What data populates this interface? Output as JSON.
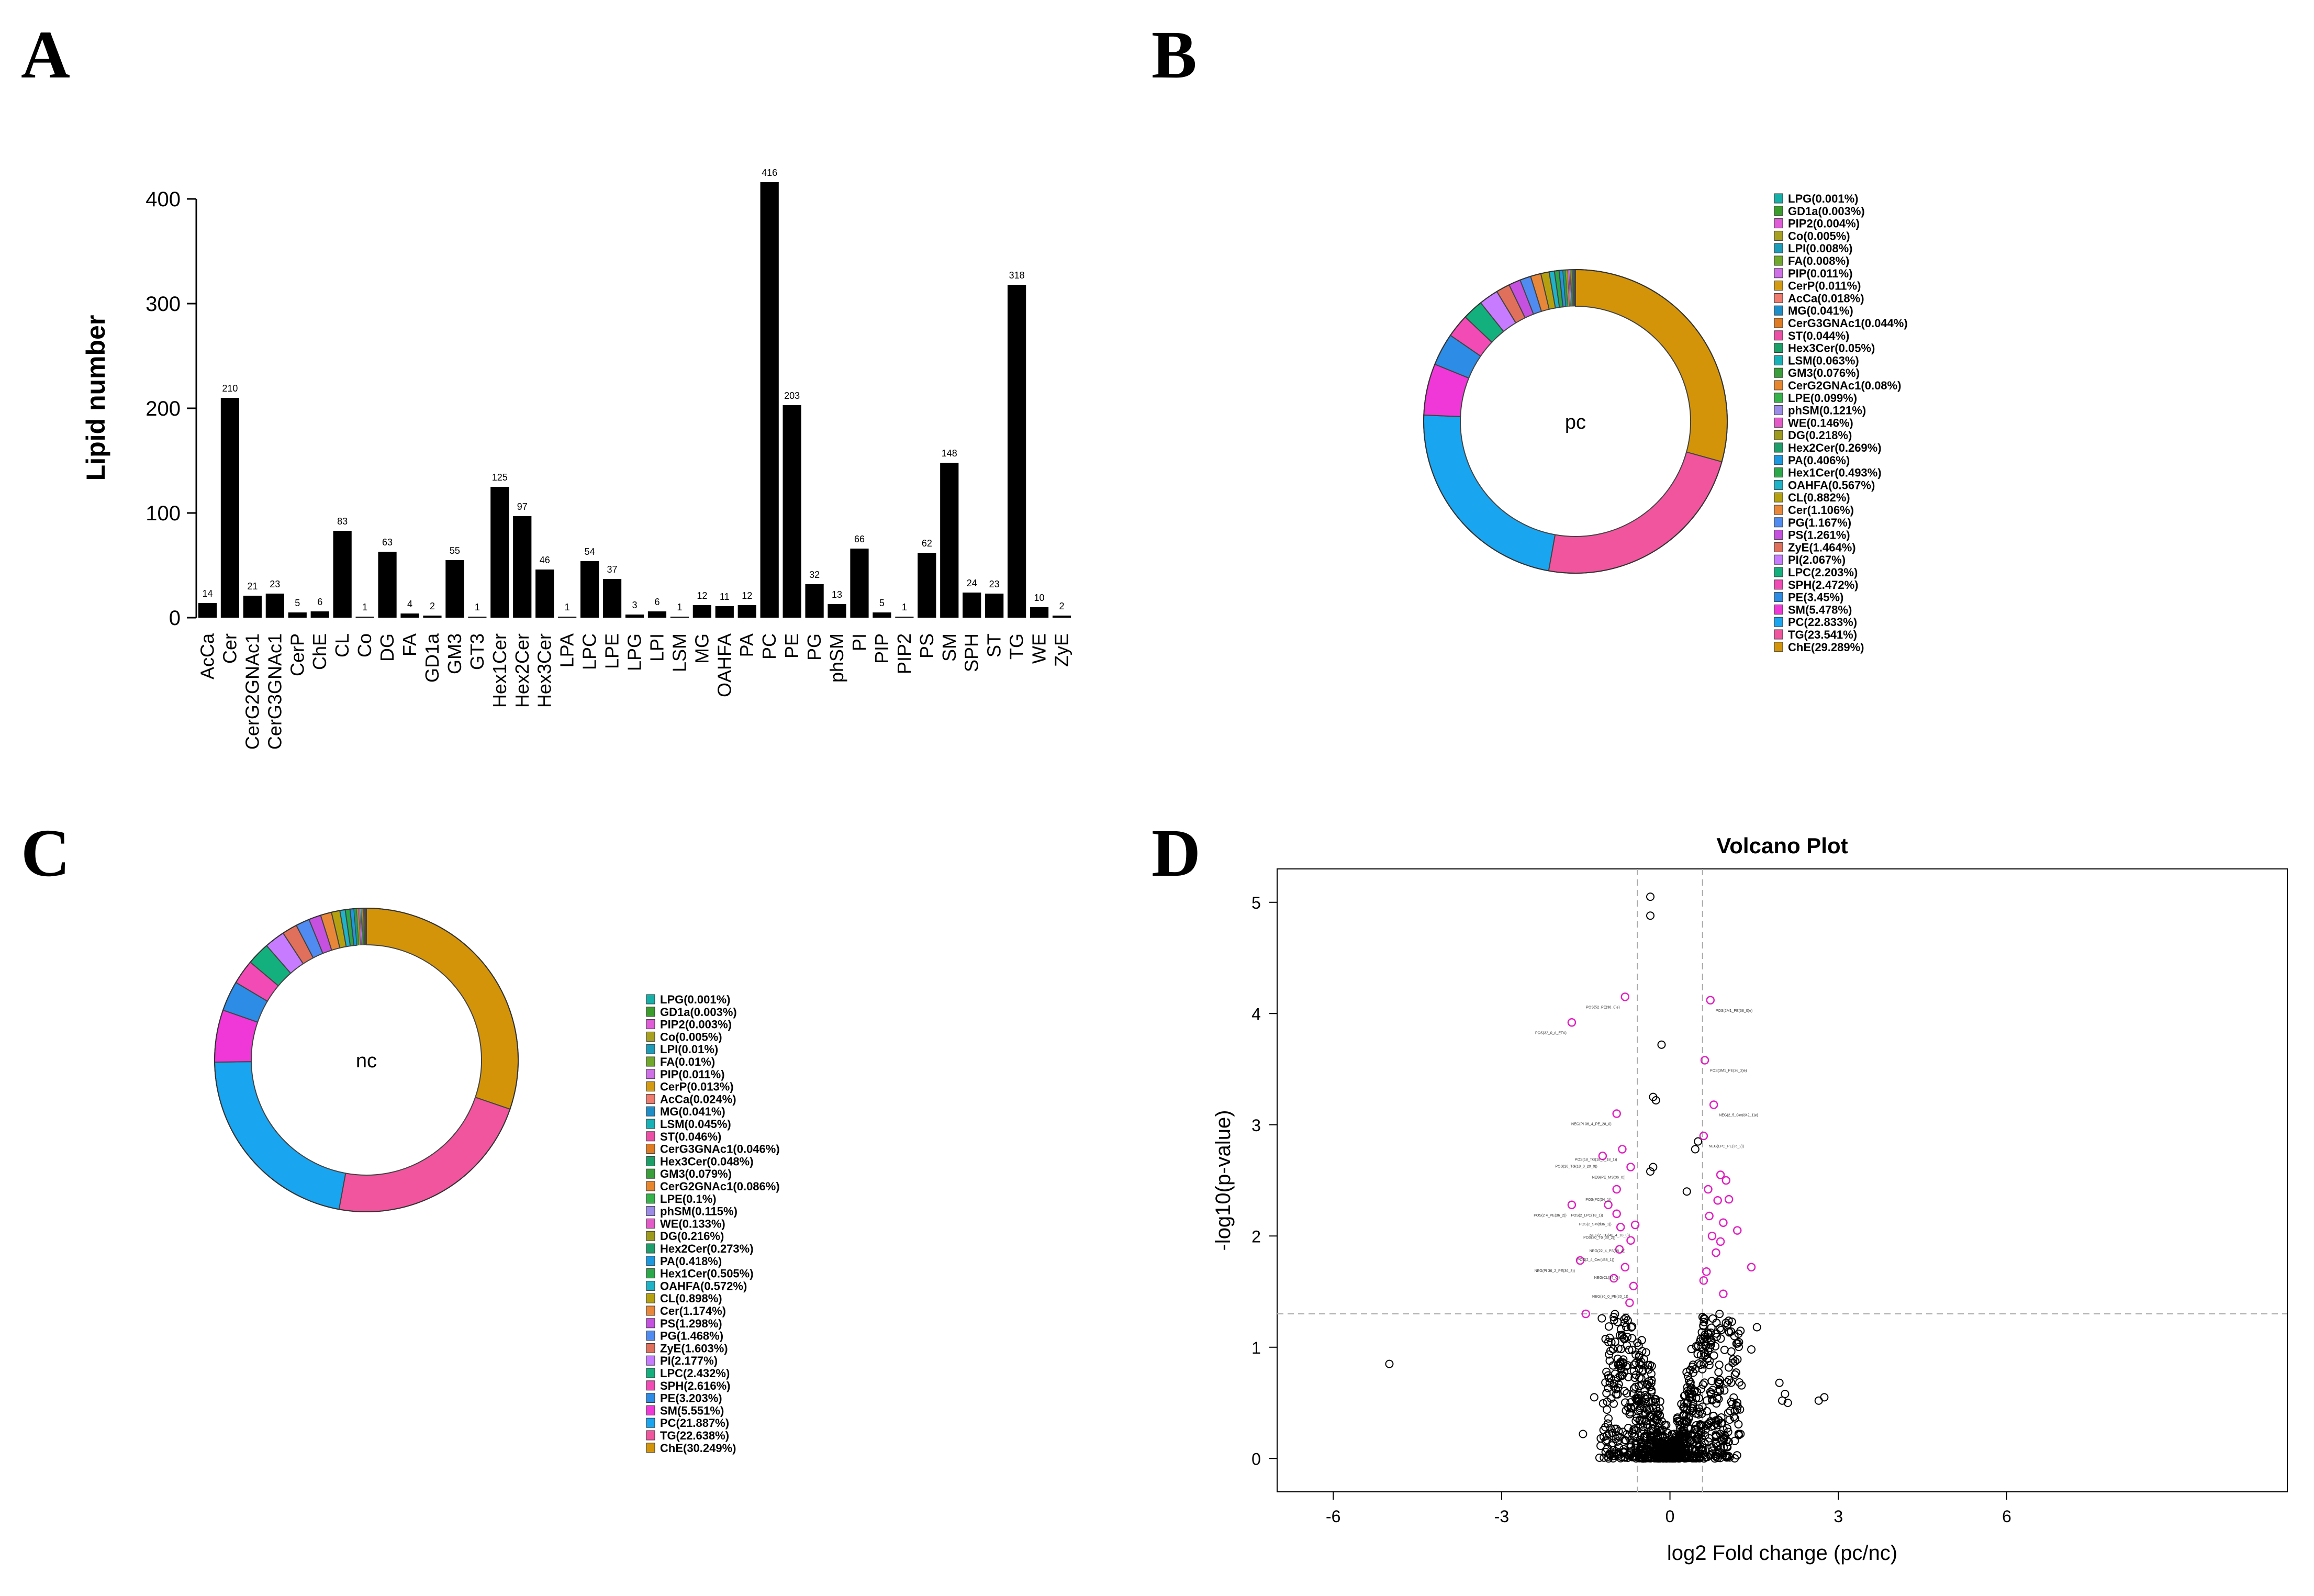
{
  "panels": {
    "a": {
      "letter": "A"
    },
    "b": {
      "letter": "B"
    },
    "c": {
      "letter": "C"
    },
    "d": {
      "letter": "D"
    }
  },
  "chart_data": [
    {
      "type": "bar",
      "title": "",
      "ylabel": "Lipid number",
      "xlabel": "",
      "ylim": [
        0,
        420
      ],
      "yticks": [
        0,
        100,
        200,
        300,
        400
      ],
      "bar_color": "#000000",
      "categories": [
        "AcCa",
        "Cer",
        "CerG2GNAc1",
        "CerG3GNAc1",
        "CerP",
        "ChE",
        "CL",
        "Co",
        "DG",
        "FA",
        "GD1a",
        "GM3",
        "GT3",
        "Hex1Cer",
        "Hex2Cer",
        "Hex3Cer",
        "LPA",
        "LPC",
        "LPE",
        "LPG",
        "LPI",
        "LSM",
        "MG",
        "OAHFA",
        "PA",
        "PC",
        "PE",
        "PG",
        "phSM",
        "PI",
        "PIP",
        "PIP2",
        "PS",
        "SM",
        "SPH",
        "ST",
        "TG",
        "WE",
        "ZyE"
      ],
      "values": [
        14,
        210,
        21,
        23,
        5,
        6,
        83,
        1,
        63,
        4,
        2,
        55,
        1,
        125,
        97,
        46,
        1,
        54,
        37,
        3,
        6,
        1,
        12,
        11,
        12,
        416,
        203,
        32,
        13,
        66,
        5,
        1,
        62,
        148,
        24,
        23,
        318,
        10,
        2
      ]
    },
    {
      "type": "pie",
      "donut": true,
      "center_label": "pc",
      "slices": [
        {
          "name": "ChE",
          "value": 29.289,
          "label": "ChE(29.289%)",
          "color": "#D4940A"
        },
        {
          "name": "TG",
          "value": 23.541,
          "label": "TG(23.541%)",
          "color": "#F1559E"
        },
        {
          "name": "PC",
          "value": 22.833,
          "label": "PC(22.833%)",
          "color": "#1AA5F0"
        },
        {
          "name": "SM",
          "value": 5.478,
          "label": "SM(5.478%)",
          "color": "#F037D8"
        },
        {
          "name": "PE",
          "value": 3.45,
          "label": "PE(3.45%)",
          "color": "#2C8CE6"
        },
        {
          "name": "SPH",
          "value": 2.472,
          "label": "SPH(2.472%)",
          "color": "#F24BB5"
        },
        {
          "name": "LPC",
          "value": 2.203,
          "label": "LPC(2.203%)",
          "color": "#13B07E"
        },
        {
          "name": "PI",
          "value": 2.067,
          "label": "PI(2.067%)",
          "color": "#C77CFF"
        },
        {
          "name": "ZyE",
          "value": 1.464,
          "label": "ZyE(1.464%)",
          "color": "#E0705C"
        },
        {
          "name": "PS",
          "value": 1.261,
          "label": "PS(1.261%)",
          "color": "#C651E0"
        },
        {
          "name": "PG",
          "value": 1.167,
          "label": "PG(1.167%)",
          "color": "#4F8BF0"
        },
        {
          "name": "Cer",
          "value": 1.106,
          "label": "Cer(1.106%)",
          "color": "#E8873A"
        },
        {
          "name": "CL",
          "value": 0.882,
          "label": "CL(0.882%)",
          "color": "#B5A10F"
        },
        {
          "name": "OAHFA",
          "value": 0.567,
          "label": "OAHFA(0.567%)",
          "color": "#1FB3C8"
        },
        {
          "name": "Hex1Cer",
          "value": 0.493,
          "label": "Hex1Cer(0.493%)",
          "color": "#2BA84A"
        },
        {
          "name": "PA",
          "value": 0.406,
          "label": "PA(0.406%)",
          "color": "#1B98E0"
        },
        {
          "name": "Hex2Cer",
          "value": 0.269,
          "label": "Hex2Cer(0.269%)",
          "color": "#1E9E6A"
        },
        {
          "name": "DG",
          "value": 0.218,
          "label": "DG(0.218%)",
          "color": "#9E9A1E"
        },
        {
          "name": "WE",
          "value": 0.146,
          "label": "WE(0.146%)",
          "color": "#E45AC8"
        },
        {
          "name": "phSM",
          "value": 0.121,
          "label": "phSM(0.121%)",
          "color": "#9C8CE8"
        },
        {
          "name": "LPE",
          "value": 0.099,
          "label": "LPE(0.099%)",
          "color": "#36B24A"
        },
        {
          "name": "CerG2GNAc1",
          "value": 0.08,
          "label": "CerG2GNAc1(0.08%)",
          "color": "#E8862E"
        },
        {
          "name": "GM3",
          "value": 0.076,
          "label": "GM3(0.076%)",
          "color": "#3A9E3A"
        },
        {
          "name": "LSM",
          "value": 0.063,
          "label": "LSM(0.063%)",
          "color": "#17B2B8"
        },
        {
          "name": "Hex3Cer",
          "value": 0.05,
          "label": "Hex3Cer(0.05%)",
          "color": "#1AA068"
        },
        {
          "name": "ST",
          "value": 0.044,
          "label": "ST(0.044%)",
          "color": "#EE4FA6"
        },
        {
          "name": "CerG3GNAc1",
          "value": 0.044,
          "label": "CerG3GNAc1(0.044%)",
          "color": "#E07B22"
        },
        {
          "name": "MG",
          "value": 0.041,
          "label": "MG(0.041%)",
          "color": "#1E8EC8"
        },
        {
          "name": "AcCa",
          "value": 0.018,
          "label": "AcCa(0.018%)",
          "color": "#F07C70"
        },
        {
          "name": "CerP",
          "value": 0.011,
          "label": "CerP(0.011%)",
          "color": "#D39A12"
        },
        {
          "name": "PIP",
          "value": 0.011,
          "label": "PIP(0.011%)",
          "color": "#D070E8"
        },
        {
          "name": "FA",
          "value": 0.008,
          "label": "FA(0.008%)",
          "color": "#6FA82A"
        },
        {
          "name": "LPI",
          "value": 0.008,
          "label": "LPI(0.008%)",
          "color": "#1C9CB8"
        },
        {
          "name": "Co",
          "value": 0.005,
          "label": "Co(0.005%)",
          "color": "#A8A020"
        },
        {
          "name": "PIP2",
          "value": 0.004,
          "label": "PIP2(0.004%)",
          "color": "#E05CD8"
        },
        {
          "name": "GD1a",
          "value": 0.003,
          "label": "GD1a(0.003%)",
          "color": "#3A9C2A"
        },
        {
          "name": "LPG",
          "value": 0.001,
          "label": "LPG(0.001%)",
          "color": "#16B0A8"
        }
      ]
    },
    {
      "type": "pie",
      "donut": true,
      "center_label": "nc",
      "slices": [
        {
          "name": "ChE",
          "value": 30.249,
          "label": "ChE(30.249%)",
          "color": "#D4940A"
        },
        {
          "name": "TG",
          "value": 22.638,
          "label": "TG(22.638%)",
          "color": "#F1559E"
        },
        {
          "name": "PC",
          "value": 21.887,
          "label": "PC(21.887%)",
          "color": "#1AA5F0"
        },
        {
          "name": "SM",
          "value": 5.551,
          "label": "SM(5.551%)",
          "color": "#F037D8"
        },
        {
          "name": "PE",
          "value": 3.203,
          "label": "PE(3.203%)",
          "color": "#2C8CE6"
        },
        {
          "name": "SPH",
          "value": 2.616,
          "label": "SPH(2.616%)",
          "color": "#F24BB5"
        },
        {
          "name": "LPC",
          "value": 2.432,
          "label": "LPC(2.432%)",
          "color": "#13B07E"
        },
        {
          "name": "PI",
          "value": 2.177,
          "label": "PI(2.177%)",
          "color": "#C77CFF"
        },
        {
          "name": "ZyE",
          "value": 1.603,
          "label": "ZyE(1.603%)",
          "color": "#E0705C"
        },
        {
          "name": "PG",
          "value": 1.468,
          "label": "PG(1.468%)",
          "color": "#4F8BF0"
        },
        {
          "name": "PS",
          "value": 1.298,
          "label": "PS(1.298%)",
          "color": "#C651E0"
        },
        {
          "name": "Cer",
          "value": 1.174,
          "label": "Cer(1.174%)",
          "color": "#E8873A"
        },
        {
          "name": "CL",
          "value": 0.898,
          "label": "CL(0.898%)",
          "color": "#B5A10F"
        },
        {
          "name": "OAHFA",
          "value": 0.572,
          "label": "OAHFA(0.572%)",
          "color": "#1FB3C8"
        },
        {
          "name": "Hex1Cer",
          "value": 0.505,
          "label": "Hex1Cer(0.505%)",
          "color": "#2BA84A"
        },
        {
          "name": "PA",
          "value": 0.418,
          "label": "PA(0.418%)",
          "color": "#1B98E0"
        },
        {
          "name": "Hex2Cer",
          "value": 0.273,
          "label": "Hex2Cer(0.273%)",
          "color": "#1E9E6A"
        },
        {
          "name": "DG",
          "value": 0.216,
          "label": "DG(0.216%)",
          "color": "#9E9A1E"
        },
        {
          "name": "WE",
          "value": 0.133,
          "label": "WE(0.133%)",
          "color": "#E45AC8"
        },
        {
          "name": "phSM",
          "value": 0.115,
          "label": "phSM(0.115%)",
          "color": "#9C8CE8"
        },
        {
          "name": "LPE",
          "value": 0.1,
          "label": "LPE(0.1%)",
          "color": "#36B24A"
        },
        {
          "name": "CerG2GNAc1",
          "value": 0.086,
          "label": "CerG2GNAc1(0.086%)",
          "color": "#E8862E"
        },
        {
          "name": "GM3",
          "value": 0.079,
          "label": "GM3(0.079%)",
          "color": "#3A9E3A"
        },
        {
          "name": "Hex3Cer",
          "value": 0.048,
          "label": "Hex3Cer(0.048%)",
          "color": "#1AA068"
        },
        {
          "name": "CerG3GNAc1",
          "value": 0.046,
          "label": "CerG3GNAc1(0.046%)",
          "color": "#E07B22"
        },
        {
          "name": "ST",
          "value": 0.046,
          "label": "ST(0.046%)",
          "color": "#EE4FA6"
        },
        {
          "name": "LSM",
          "value": 0.045,
          "label": "LSM(0.045%)",
          "color": "#17B2B8"
        },
        {
          "name": "MG",
          "value": 0.041,
          "label": "MG(0.041%)",
          "color": "#1E8EC8"
        },
        {
          "name": "AcCa",
          "value": 0.024,
          "label": "AcCa(0.024%)",
          "color": "#F07C70"
        },
        {
          "name": "CerP",
          "value": 0.013,
          "label": "CerP(0.013%)",
          "color": "#D39A12"
        },
        {
          "name": "PIP",
          "value": 0.011,
          "label": "PIP(0.011%)",
          "color": "#D070E8"
        },
        {
          "name": "FA",
          "value": 0.01,
          "label": "FA(0.01%)",
          "color": "#6FA82A"
        },
        {
          "name": "LPI",
          "value": 0.01,
          "label": "LPI(0.01%)",
          "color": "#1C9CB8"
        },
        {
          "name": "Co",
          "value": 0.005,
          "label": "Co(0.005%)",
          "color": "#A8A020"
        },
        {
          "name": "PIP2",
          "value": 0.003,
          "label": "PIP2(0.003%)",
          "color": "#E05CD8"
        },
        {
          "name": "GD1a",
          "value": 0.003,
          "label": "GD1a(0.003%)",
          "color": "#3A9C2A"
        },
        {
          "name": "LPG",
          "value": 0.001,
          "label": "LPG(0.001%)",
          "color": "#16B0A8"
        }
      ]
    },
    {
      "type": "scatter",
      "title": "Volcano Plot",
      "xlabel": "log2 Fold change (pc/nc)",
      "ylabel": "-log10(p-value)",
      "xlim": [
        -7,
        11
      ],
      "ylim": [
        -0.3,
        5.3
      ],
      "xticks": [
        -6,
        -3,
        0,
        3,
        6
      ],
      "yticks": [
        0,
        1,
        2,
        3,
        4,
        5
      ],
      "thresholds": {
        "x": [
          -0.58,
          0.58
        ],
        "y": 1.3
      },
      "grid": false,
      "colors": {
        "significant": "#E020C0",
        "nonsignificant": "#000000",
        "threshold_line": "#AAAAAA"
      },
      "significant_points": [
        {
          "x": -1.75,
          "y": 3.92
        },
        {
          "x": -0.95,
          "y": 3.1
        },
        {
          "x": -0.8,
          "y": 4.15
        },
        {
          "x": 0.72,
          "y": 4.12
        },
        {
          "x": 0.62,
          "y": 3.58
        },
        {
          "x": 0.78,
          "y": 3.18
        },
        {
          "x": 0.6,
          "y": 2.9
        },
        {
          "x": -1.2,
          "y": 2.72
        },
        {
          "x": -0.85,
          "y": 2.78
        },
        {
          "x": -0.7,
          "y": 2.62
        },
        {
          "x": -0.95,
          "y": 2.42
        },
        {
          "x": -1.75,
          "y": 2.28
        },
        {
          "x": -0.88,
          "y": 2.08
        },
        {
          "x": -0.62,
          "y": 2.1
        },
        {
          "x": -0.95,
          "y": 2.2
        },
        {
          "x": -1.1,
          "y": 2.28
        },
        {
          "x": -0.7,
          "y": 1.96
        },
        {
          "x": -0.9,
          "y": 1.88
        },
        {
          "x": -1.6,
          "y": 1.78
        },
        {
          "x": -0.8,
          "y": 1.72
        },
        {
          "x": -0.65,
          "y": 1.55
        },
        {
          "x": -1.0,
          "y": 1.62
        },
        {
          "x": -1.5,
          "y": 1.3
        },
        {
          "x": -0.72,
          "y": 1.4
        },
        {
          "x": 0.9,
          "y": 2.55
        },
        {
          "x": 1.0,
          "y": 2.5
        },
        {
          "x": 0.85,
          "y": 2.32
        },
        {
          "x": 0.7,
          "y": 2.18
        },
        {
          "x": 0.95,
          "y": 2.12
        },
        {
          "x": 0.75,
          "y": 2.0
        },
        {
          "x": 1.05,
          "y": 2.33
        },
        {
          "x": 1.2,
          "y": 2.05
        },
        {
          "x": 0.82,
          "y": 1.85
        },
        {
          "x": 0.65,
          "y": 1.68
        },
        {
          "x": 0.95,
          "y": 1.48
        },
        {
          "x": 0.6,
          "y": 1.6
        },
        {
          "x": 1.45,
          "y": 1.72
        },
        {
          "x": 0.68,
          "y": 2.42
        },
        {
          "x": 0.9,
          "y": 1.95
        }
      ],
      "outlier_points": [
        {
          "x": -0.35,
          "y": 5.05
        },
        {
          "x": -0.35,
          "y": 4.88
        },
        {
          "x": -0.15,
          "y": 3.72
        },
        {
          "x": -0.3,
          "y": 3.25
        },
        {
          "x": -0.25,
          "y": 3.22
        },
        {
          "x": 0.5,
          "y": 2.85
        },
        {
          "x": 0.45,
          "y": 2.78
        },
        {
          "x": -0.3,
          "y": 2.62
        },
        {
          "x": -0.35,
          "y": 2.58
        },
        {
          "x": 0.3,
          "y": 2.4
        },
        {
          "x": -5.0,
          "y": 0.85
        },
        {
          "x": 1.95,
          "y": 0.68
        },
        {
          "x": 2.05,
          "y": 0.58
        },
        {
          "x": 2.0,
          "y": 0.52
        },
        {
          "x": 2.1,
          "y": 0.5
        },
        {
          "x": 2.65,
          "y": 0.52
        },
        {
          "x": 2.75,
          "y": 0.55
        },
        {
          "x": 1.55,
          "y": 1.18
        },
        {
          "x": 1.45,
          "y": 0.98
        },
        {
          "x": -1.55,
          "y": 0.22
        },
        {
          "x": -1.35,
          "y": 0.55
        }
      ],
      "annotations": [
        "POS(32_0_d_EFA)",
        "NEG(PI 36_4_PE_28_0)",
        "POS(52_PE(38_0)e)",
        "POS(2M1_PE(38_0)e)",
        "POS(3M1_PE(36_3)e)",
        "NEG(2_5_Cer(d42_1)e)",
        "NEG(LPC_PE(36_2))",
        "POS(20_TG(18_0_20_0))",
        "POS(18_TG(18_0_18_1))",
        "NEG(PE_MS(36_0))",
        "POS(PC(34_1))",
        "POS(2 4_PE(36_2))",
        "POS(20_TG(36_2))",
        "NEG(2_TG(40_4_18_0))",
        "POS(2_SM(d36_1))",
        "POS(2_LPC(18_1))",
        "NEG(22_4_PS(38_4))",
        "POS(2_4_Cer(d38_1))",
        "NEG(PI 36_2_PE(36_3))",
        "NEG(CL(34_0))",
        "NEG(36_0_PE(20_1))"
      ]
    }
  ]
}
